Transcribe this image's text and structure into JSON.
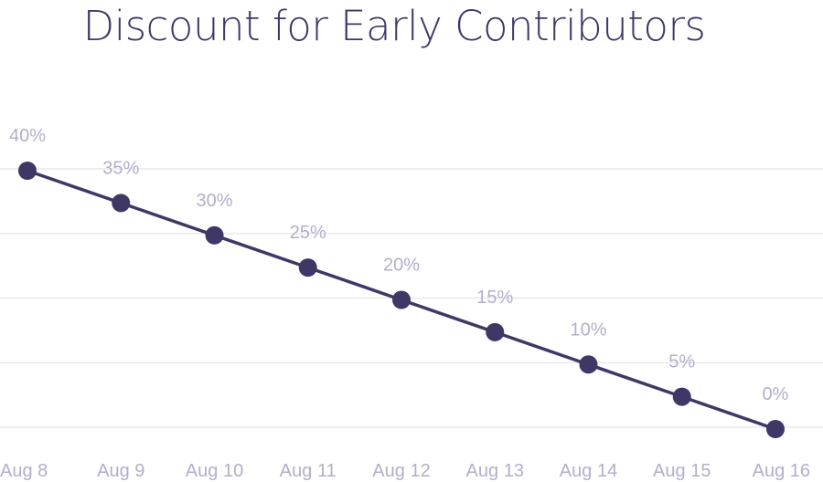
{
  "colors": {
    "series": "#3f3866",
    "label": "#b3aecb",
    "grid": "#e9e9ee",
    "title": "#3f3866"
  },
  "chart_data": {
    "type": "line",
    "title": "Discount for Early Contributors",
    "xlabel": "",
    "ylabel": "",
    "categories": [
      "Aug 8",
      "Aug 9",
      "Aug 10",
      "Aug 11",
      "Aug 12",
      "Aug 13",
      "Aug 14",
      "Aug 15",
      "Aug 16"
    ],
    "series": [
      {
        "values": [
          40,
          35,
          30,
          25,
          20,
          15,
          10,
          5,
          0
        ],
        "data_labels": [
          "40%",
          "35%",
          "30%",
          "25%",
          "20%",
          "15%",
          "10%",
          "5%",
          "0%"
        ]
      }
    ],
    "ylim": [
      0,
      40
    ],
    "y_gridlines": [
      0,
      10,
      20,
      30,
      40
    ],
    "grid": true,
    "legend": "none"
  }
}
